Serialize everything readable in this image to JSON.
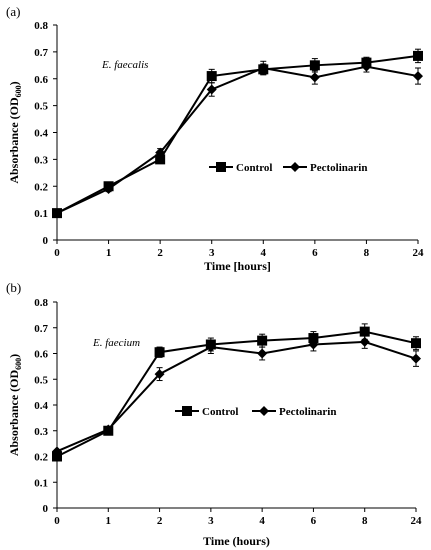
{
  "chart_data": [
    {
      "panel_label": "(a)",
      "type": "line",
      "organism": "E. faecalis",
      "ylabel": "Absorbance (OD",
      "ylabel_sub": "600",
      "ylabel_end": ")",
      "xlabel": "Time [hours]",
      "categories": [
        "0",
        "1",
        "2",
        "3",
        "4",
        "6",
        "8",
        "24"
      ],
      "ylim": [
        0,
        0.8
      ],
      "yticks": [
        "0",
        "0.1",
        "0.2",
        "0.3",
        "0.4",
        "0.5",
        "0.6",
        "0.7",
        "0.8"
      ],
      "legend_position": "center-right",
      "grid": false,
      "series": [
        {
          "name": "Control",
          "marker": "square",
          "values": [
            0.1,
            0.2,
            0.3,
            0.61,
            0.635,
            0.65,
            0.66,
            0.685
          ],
          "errors": [
            0,
            0.01,
            0.01,
            0.025,
            0.02,
            0.025,
            0.02,
            0.025
          ]
        },
        {
          "name": "Pectolinarin",
          "marker": "diamond",
          "values": [
            0.1,
            0.19,
            0.325,
            0.56,
            0.64,
            0.605,
            0.645,
            0.61
          ],
          "errors": [
            0,
            0.01,
            0.015,
            0.025,
            0.025,
            0.025,
            0.02,
            0.03
          ]
        }
      ]
    },
    {
      "panel_label": "(b)",
      "type": "line",
      "organism": "E. faecium",
      "ylabel": "Absorbance (OD",
      "ylabel_sub": "600",
      "ylabel_end": ")",
      "xlabel": "Time (hours)",
      "categories": [
        "0",
        "1",
        "2",
        "3",
        "4",
        "6",
        "8",
        "24"
      ],
      "ylim": [
        0,
        0.8
      ],
      "yticks": [
        "0",
        "0.1",
        "0.2",
        "0.3",
        "0.4",
        "0.5",
        "0.6",
        "0.7",
        "0.8"
      ],
      "legend_position": "center-right",
      "grid": false,
      "series": [
        {
          "name": "Control",
          "marker": "square",
          "values": [
            0.2,
            0.3,
            0.605,
            0.635,
            0.65,
            0.66,
            0.685,
            0.64
          ],
          "errors": [
            0,
            0.01,
            0.02,
            0.025,
            0.025,
            0.025,
            0.03,
            0.025
          ]
        },
        {
          "name": "Pectolinarin",
          "marker": "diamond",
          "values": [
            0.22,
            0.305,
            0.52,
            0.625,
            0.6,
            0.635,
            0.645,
            0.58
          ],
          "errors": [
            0,
            0.01,
            0.025,
            0.025,
            0.025,
            0.025,
            0.025,
            0.03
          ]
        }
      ]
    }
  ]
}
